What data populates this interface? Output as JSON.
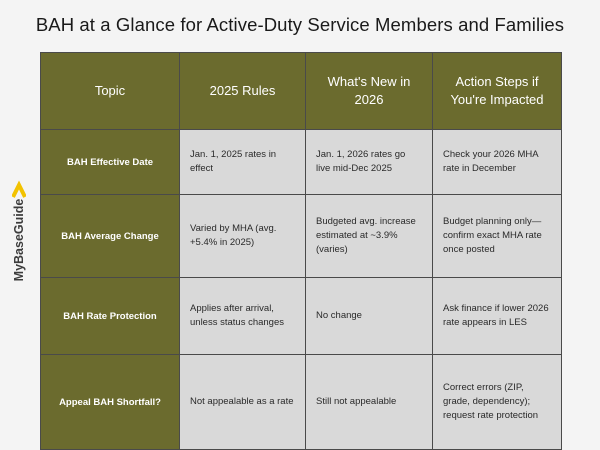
{
  "title": "BAH at a Glance for Active-Duty Service Members and Families",
  "logo": {
    "text": "MyBaseGuide",
    "icon": "chevron-up-icon",
    "color": "#f2c200"
  },
  "colors": {
    "header_bg": "#6b6b2e",
    "cell_bg": "#d9d9d9",
    "page_bg": "#f4f4f4"
  },
  "table": {
    "headers": [
      "Topic",
      "2025 Rules",
      "What's New in 2026",
      "Action Steps if You're Impacted"
    ],
    "rows": [
      {
        "topic": "BAH Effective Date",
        "rules_2025": "Jan. 1, 2025 rates in effect",
        "new_2026": "Jan. 1, 2026 rates go live mid-Dec 2025",
        "action": "Check your 2026 MHA rate in December"
      },
      {
        "topic": "BAH Average Change",
        "rules_2025": "Varied by MHA (avg. +5.4% in 2025)",
        "new_2026": "Budgeted avg. increase estimated at ~3.9% (varies)",
        "action": "Budget planning only—confirm exact MHA rate once posted"
      },
      {
        "topic": "BAH Rate Protection",
        "rules_2025": "Applies after arrival, unless status changes",
        "new_2026": "No change",
        "action": "Ask finance if lower 2026 rate appears in LES"
      },
      {
        "topic": "Appeal BAH Shortfall?",
        "rules_2025": "Not appealable as a rate",
        "new_2026": "Still not appealable",
        "action": "Correct errors (ZIP, grade, dependency); request rate protection"
      }
    ]
  }
}
